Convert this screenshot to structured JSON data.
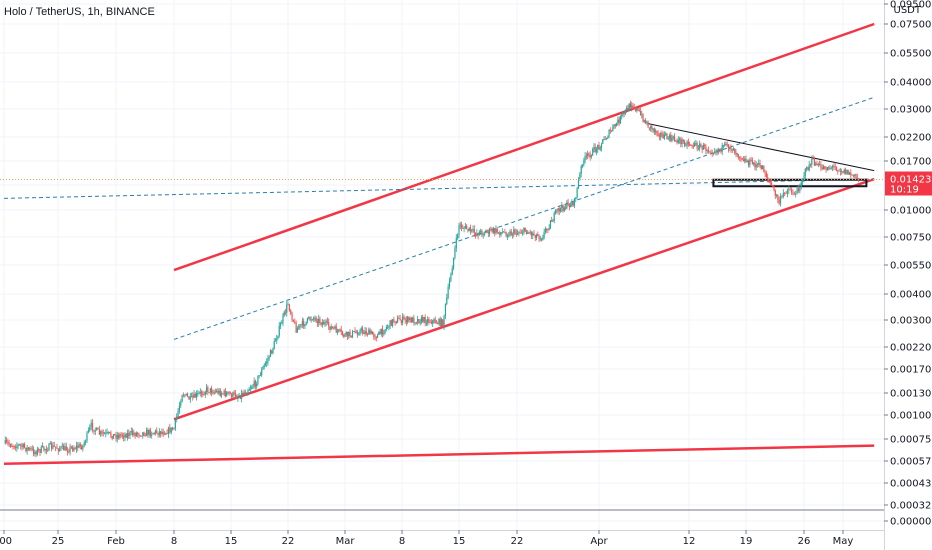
{
  "chart_data": {
    "type": "candlestick",
    "title": "Holo / TetherUS, 1h, BINANCE",
    "currency": "USDT",
    "y_scale": "log",
    "grid": true,
    "y_ticks": [
      0.0,
      0.00032,
      0.00043,
      0.00057,
      0.00075,
      0.001,
      0.0013,
      0.0017,
      0.0022,
      0.003,
      0.004,
      0.0055,
      0.0075,
      0.01,
      0.0135,
      0.017,
      0.022,
      0.03,
      0.04,
      0.055,
      0.075,
      0.095
    ],
    "y_tick_labels": [
      "0.000000",
      "0.000320",
      "0.000430",
      "0.000570",
      "0.000750",
      "0.001000",
      "0.001300",
      "0.001700",
      "0.002200",
      "0.003000",
      "0.004000",
      "0.005500",
      "0.007500",
      "0.010000",
      "",
      "0.017000",
      "0.022000",
      "0.030000",
      "0.040000",
      "0.055000",
      "0.075000",
      "0.095000"
    ],
    "x_ticks": [
      {
        "label": ":00",
        "date": "2019-01-18"
      },
      {
        "label": "25",
        "date": "2019-01-25"
      },
      {
        "label": "Feb",
        "date": "2019-02-01"
      },
      {
        "label": "8",
        "date": "2019-02-08"
      },
      {
        "label": "15",
        "date": "2019-02-15"
      },
      {
        "label": "22",
        "date": "2019-02-22"
      },
      {
        "label": "Mar",
        "date": "2019-03-01"
      },
      {
        "label": "8",
        "date": "2019-03-08"
      },
      {
        "label": "15",
        "date": "2019-03-15"
      },
      {
        "label": "22",
        "date": "2019-03-22"
      },
      {
        "label": "Apr",
        "date": "2019-04-01"
      },
      {
        "label": "12",
        "date": "2019-04-12"
      },
      {
        "label": "19",
        "date": "2019-04-19"
      },
      {
        "label": "26",
        "date": "2019-04-26"
      },
      {
        "label": "May",
        "date": "2019-05-01"
      }
    ],
    "price_path": [
      [
        "2019-01-18",
        0.00071
      ],
      [
        "2019-01-20",
        0.00069
      ],
      [
        "2019-01-22",
        0.00064
      ],
      [
        "2019-01-24",
        0.00068
      ],
      [
        "2019-01-26",
        0.00066
      ],
      [
        "2019-01-28",
        0.00069
      ],
      [
        "2019-01-29",
        0.00088
      ],
      [
        "2019-01-30",
        0.0008
      ],
      [
        "2019-02-01",
        0.00078
      ],
      [
        "2019-02-03",
        0.0008
      ],
      [
        "2019-02-05",
        0.00081
      ],
      [
        "2019-02-07",
        0.00082
      ],
      [
        "2019-02-08",
        0.00085
      ],
      [
        "2019-02-09",
        0.0013
      ],
      [
        "2019-02-10",
        0.0012
      ],
      [
        "2019-02-12",
        0.00135
      ],
      [
        "2019-02-14",
        0.0013
      ],
      [
        "2019-02-16",
        0.00125
      ],
      [
        "2019-02-18",
        0.00145
      ],
      [
        "2019-02-20",
        0.0021
      ],
      [
        "2019-02-22",
        0.0036
      ],
      [
        "2019-02-23",
        0.0027
      ],
      [
        "2019-02-25",
        0.0031
      ],
      [
        "2019-02-27",
        0.0028
      ],
      [
        "2019-03-01",
        0.0025
      ],
      [
        "2019-03-03",
        0.00265
      ],
      [
        "2019-03-05",
        0.0025
      ],
      [
        "2019-03-07",
        0.003
      ],
      [
        "2019-03-09",
        0.003
      ],
      [
        "2019-03-11",
        0.003
      ],
      [
        "2019-03-13",
        0.0029
      ],
      [
        "2019-03-14",
        0.005
      ],
      [
        "2019-03-15",
        0.0085
      ],
      [
        "2019-03-17",
        0.0078
      ],
      [
        "2019-03-19",
        0.008
      ],
      [
        "2019-03-21",
        0.0078
      ],
      [
        "2019-03-23",
        0.008
      ],
      [
        "2019-03-25",
        0.0075
      ],
      [
        "2019-03-27",
        0.01
      ],
      [
        "2019-03-29",
        0.011
      ],
      [
        "2019-03-30",
        0.017
      ],
      [
        "2019-04-01",
        0.02
      ],
      [
        "2019-04-03",
        0.025
      ],
      [
        "2019-04-05",
        0.032
      ],
      [
        "2019-04-07",
        0.025
      ],
      [
        "2019-04-09",
        0.022
      ],
      [
        "2019-04-11",
        0.021
      ],
      [
        "2019-04-13",
        0.02
      ],
      [
        "2019-04-15",
        0.019
      ],
      [
        "2019-04-17",
        0.02
      ],
      [
        "2019-04-19",
        0.017
      ],
      [
        "2019-04-21",
        0.016
      ],
      [
        "2019-04-23",
        0.011
      ],
      [
        "2019-04-24",
        0.013
      ],
      [
        "2019-04-25",
        0.012
      ],
      [
        "2019-04-26",
        0.015
      ],
      [
        "2019-04-27",
        0.017
      ],
      [
        "2019-04-28",
        0.016
      ],
      [
        "2019-04-30",
        0.016
      ],
      [
        "2019-05-02",
        0.015
      ],
      [
        "2019-05-03",
        0.01423
      ]
    ],
    "current_price": {
      "value": 0.014233,
      "label": "0.014233",
      "countdown": "10:19",
      "color": "#f23645"
    },
    "trend_lines": [
      {
        "kind": "channel-upper",
        "color": "#f23645",
        "from": [
          "2019-02-08",
          0.0052
        ],
        "to": [
          "2019-05-05",
          0.075
        ]
      },
      {
        "kind": "channel-lower",
        "color": "#f23645",
        "from": [
          "2019-02-08",
          0.00095
        ],
        "to": [
          "2019-05-05",
          0.0143
        ]
      },
      {
        "kind": "long-support",
        "color": "#f23645",
        "from": [
          "2019-01-18",
          0.00055
        ],
        "to": [
          "2019-05-05",
          0.00069
        ]
      },
      {
        "kind": "midline-dashed",
        "color": "#2a7fa8",
        "from": [
          "2019-02-08",
          0.0024
        ],
        "to": [
          "2019-05-05",
          0.034
        ]
      },
      {
        "kind": "horizontal-dashed",
        "color": "#2a7fa8",
        "from": [
          "2019-01-18",
          0.0115
        ],
        "to": [
          "2019-05-05",
          0.0143
        ]
      },
      {
        "kind": "triangle-top",
        "color": "#131722",
        "from": [
          "2019-04-07",
          0.0255
        ],
        "to": [
          "2019-05-05",
          0.0155
        ]
      }
    ],
    "zone": {
      "color": "#131722",
      "from_date": "2019-04-15",
      "to_date": "2019-05-04",
      "low": 0.0133,
      "high": 0.0142
    }
  }
}
